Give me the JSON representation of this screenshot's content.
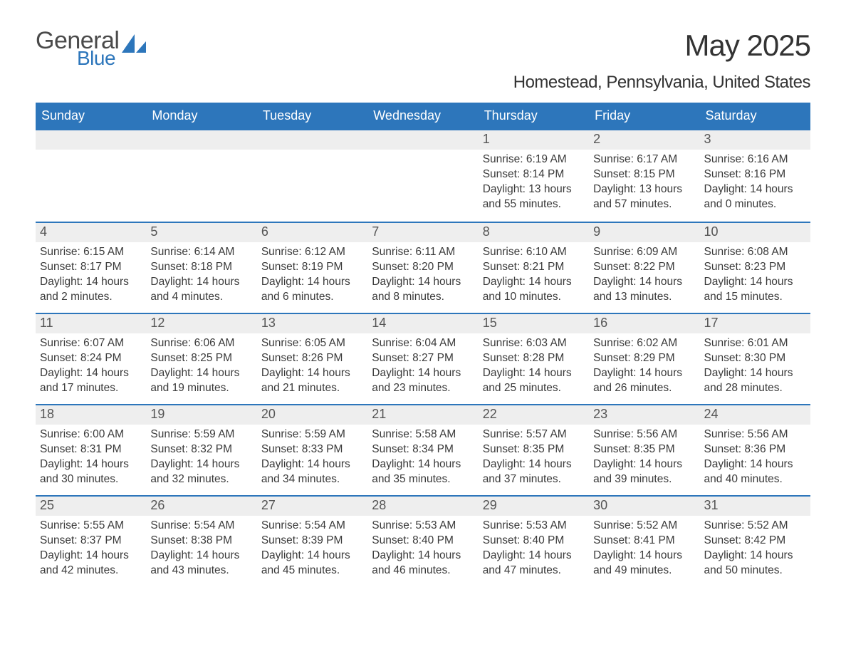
{
  "logo": {
    "text1": "General",
    "text2": "Blue"
  },
  "title": "May 2025",
  "location": "Homestead, Pennsylvania, United States",
  "colors": {
    "accent": "#2d76bb",
    "daynum_bg": "#eeeeee",
    "text": "#3a3a3a",
    "background": "#ffffff"
  },
  "weekdays": [
    "Sunday",
    "Monday",
    "Tuesday",
    "Wednesday",
    "Thursday",
    "Friday",
    "Saturday"
  ],
  "weeks": [
    [
      {
        "n": "",
        "sr": "",
        "ss": "",
        "d": ""
      },
      {
        "n": "",
        "sr": "",
        "ss": "",
        "d": ""
      },
      {
        "n": "",
        "sr": "",
        "ss": "",
        "d": ""
      },
      {
        "n": "",
        "sr": "",
        "ss": "",
        "d": ""
      },
      {
        "n": "1",
        "sr": "Sunrise: 6:19 AM",
        "ss": "Sunset: 8:14 PM",
        "d": "Daylight: 13 hours and 55 minutes."
      },
      {
        "n": "2",
        "sr": "Sunrise: 6:17 AM",
        "ss": "Sunset: 8:15 PM",
        "d": "Daylight: 13 hours and 57 minutes."
      },
      {
        "n": "3",
        "sr": "Sunrise: 6:16 AM",
        "ss": "Sunset: 8:16 PM",
        "d": "Daylight: 14 hours and 0 minutes."
      }
    ],
    [
      {
        "n": "4",
        "sr": "Sunrise: 6:15 AM",
        "ss": "Sunset: 8:17 PM",
        "d": "Daylight: 14 hours and 2 minutes."
      },
      {
        "n": "5",
        "sr": "Sunrise: 6:14 AM",
        "ss": "Sunset: 8:18 PM",
        "d": "Daylight: 14 hours and 4 minutes."
      },
      {
        "n": "6",
        "sr": "Sunrise: 6:12 AM",
        "ss": "Sunset: 8:19 PM",
        "d": "Daylight: 14 hours and 6 minutes."
      },
      {
        "n": "7",
        "sr": "Sunrise: 6:11 AM",
        "ss": "Sunset: 8:20 PM",
        "d": "Daylight: 14 hours and 8 minutes."
      },
      {
        "n": "8",
        "sr": "Sunrise: 6:10 AM",
        "ss": "Sunset: 8:21 PM",
        "d": "Daylight: 14 hours and 10 minutes."
      },
      {
        "n": "9",
        "sr": "Sunrise: 6:09 AM",
        "ss": "Sunset: 8:22 PM",
        "d": "Daylight: 14 hours and 13 minutes."
      },
      {
        "n": "10",
        "sr": "Sunrise: 6:08 AM",
        "ss": "Sunset: 8:23 PM",
        "d": "Daylight: 14 hours and 15 minutes."
      }
    ],
    [
      {
        "n": "11",
        "sr": "Sunrise: 6:07 AM",
        "ss": "Sunset: 8:24 PM",
        "d": "Daylight: 14 hours and 17 minutes."
      },
      {
        "n": "12",
        "sr": "Sunrise: 6:06 AM",
        "ss": "Sunset: 8:25 PM",
        "d": "Daylight: 14 hours and 19 minutes."
      },
      {
        "n": "13",
        "sr": "Sunrise: 6:05 AM",
        "ss": "Sunset: 8:26 PM",
        "d": "Daylight: 14 hours and 21 minutes."
      },
      {
        "n": "14",
        "sr": "Sunrise: 6:04 AM",
        "ss": "Sunset: 8:27 PM",
        "d": "Daylight: 14 hours and 23 minutes."
      },
      {
        "n": "15",
        "sr": "Sunrise: 6:03 AM",
        "ss": "Sunset: 8:28 PM",
        "d": "Daylight: 14 hours and 25 minutes."
      },
      {
        "n": "16",
        "sr": "Sunrise: 6:02 AM",
        "ss": "Sunset: 8:29 PM",
        "d": "Daylight: 14 hours and 26 minutes."
      },
      {
        "n": "17",
        "sr": "Sunrise: 6:01 AM",
        "ss": "Sunset: 8:30 PM",
        "d": "Daylight: 14 hours and 28 minutes."
      }
    ],
    [
      {
        "n": "18",
        "sr": "Sunrise: 6:00 AM",
        "ss": "Sunset: 8:31 PM",
        "d": "Daylight: 14 hours and 30 minutes."
      },
      {
        "n": "19",
        "sr": "Sunrise: 5:59 AM",
        "ss": "Sunset: 8:32 PM",
        "d": "Daylight: 14 hours and 32 minutes."
      },
      {
        "n": "20",
        "sr": "Sunrise: 5:59 AM",
        "ss": "Sunset: 8:33 PM",
        "d": "Daylight: 14 hours and 34 minutes."
      },
      {
        "n": "21",
        "sr": "Sunrise: 5:58 AM",
        "ss": "Sunset: 8:34 PM",
        "d": "Daylight: 14 hours and 35 minutes."
      },
      {
        "n": "22",
        "sr": "Sunrise: 5:57 AM",
        "ss": "Sunset: 8:35 PM",
        "d": "Daylight: 14 hours and 37 minutes."
      },
      {
        "n": "23",
        "sr": "Sunrise: 5:56 AM",
        "ss": "Sunset: 8:35 PM",
        "d": "Daylight: 14 hours and 39 minutes."
      },
      {
        "n": "24",
        "sr": "Sunrise: 5:56 AM",
        "ss": "Sunset: 8:36 PM",
        "d": "Daylight: 14 hours and 40 minutes."
      }
    ],
    [
      {
        "n": "25",
        "sr": "Sunrise: 5:55 AM",
        "ss": "Sunset: 8:37 PM",
        "d": "Daylight: 14 hours and 42 minutes."
      },
      {
        "n": "26",
        "sr": "Sunrise: 5:54 AM",
        "ss": "Sunset: 8:38 PM",
        "d": "Daylight: 14 hours and 43 minutes."
      },
      {
        "n": "27",
        "sr": "Sunrise: 5:54 AM",
        "ss": "Sunset: 8:39 PM",
        "d": "Daylight: 14 hours and 45 minutes."
      },
      {
        "n": "28",
        "sr": "Sunrise: 5:53 AM",
        "ss": "Sunset: 8:40 PM",
        "d": "Daylight: 14 hours and 46 minutes."
      },
      {
        "n": "29",
        "sr": "Sunrise: 5:53 AM",
        "ss": "Sunset: 8:40 PM",
        "d": "Daylight: 14 hours and 47 minutes."
      },
      {
        "n": "30",
        "sr": "Sunrise: 5:52 AM",
        "ss": "Sunset: 8:41 PM",
        "d": "Daylight: 14 hours and 49 minutes."
      },
      {
        "n": "31",
        "sr": "Sunrise: 5:52 AM",
        "ss": "Sunset: 8:42 PM",
        "d": "Daylight: 14 hours and 50 minutes."
      }
    ]
  ]
}
